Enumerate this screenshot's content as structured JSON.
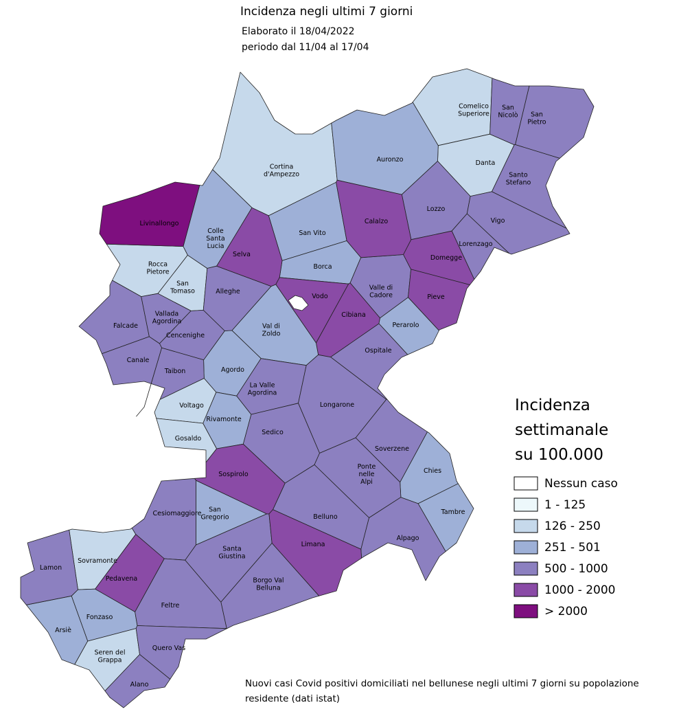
{
  "header": {
    "title": "Incidenza negli ultimi 7 giorni",
    "date": "Elaborato il 18/04/2022",
    "period": "periodo dal 11/04 al 17/04"
  },
  "legend": {
    "title": [
      "Incidenza",
      "settimanale",
      "su 100.000"
    ],
    "classes": [
      {
        "label": "Nessun caso",
        "color": "#ffffff",
        "municipalities": []
      },
      {
        "label": "1 - 125",
        "color": "#edf8fb",
        "municipalities": []
      },
      {
        "label": "126 - 250",
        "color": "#c6d9eb",
        "municipalities": [
          [
            "Cortina",
            "d'Ampezzo"
          ],
          [
            "Comelico",
            "Superiore"
          ],
          "Danta",
          [
            "Rocca",
            "Pietore"
          ],
          [
            "San",
            "Tomaso"
          ],
          "Voltago",
          "Gosaldo",
          "Sovramonte",
          [
            "Seren del",
            "Grappa"
          ]
        ]
      },
      {
        "label": "251 - 501",
        "color": "#9eb0d7",
        "municipalities": [
          "Auronzo",
          "San Vito",
          "Borca",
          [
            "Colle",
            "Santa",
            "Lucia"
          ],
          [
            "Val di",
            "Zoldo"
          ],
          "Agordo",
          "Rivamonte",
          "Perarolo",
          "Chies",
          "Tambre",
          "Fonzaso",
          "Arsiè",
          [
            "San",
            "Gregorio"
          ]
        ]
      },
      {
        "label": "500 - 1000",
        "color": "#8c80c0",
        "municipalities": [
          [
            "San",
            "Nicolò"
          ],
          [
            "San",
            "Pietro"
          ],
          [
            "Santo",
            "Stefano"
          ],
          "Lozzo",
          "Vigo",
          "Lorenzago",
          "Alleghe",
          "Falcade",
          [
            "Vallada",
            "Agordina"
          ],
          "Cencenighe",
          "Canale",
          "Taibon",
          [
            "La Valle",
            "Agordina"
          ],
          "Longarone",
          "Sedico",
          "Soverzene",
          [
            "Ponte",
            "nelle",
            "Alpi"
          ],
          "Belluno",
          "Cesiomaggiore",
          "Alpago",
          [
            "Santa",
            "Giustina"
          ],
          "Lamon",
          [
            "Borgo Val",
            "Belluna"
          ],
          "Feltre",
          "Quero Vas",
          "Alano",
          [
            "Valle di",
            "Cadore"
          ],
          "Ospitale"
        ]
      },
      {
        "label": "1000 - 2000",
        "color": "#8a4ba6",
        "municipalities": [
          "Selva",
          "Calalzo",
          "Domegge",
          "Pieve",
          "Vodo",
          "Cibiana",
          "Sospirolo",
          "Pedavena",
          "Limana"
        ]
      },
      {
        "label": "> 2000",
        "color": "#7e0f7f",
        "municipalities": [
          "Livinallongo"
        ]
      }
    ]
  },
  "note": [
    "Nuovi casi Covid positivi domiciliati nel bellunese negli ultimi 7 giorni su popolazione",
    "residente (dati istat)"
  ]
}
